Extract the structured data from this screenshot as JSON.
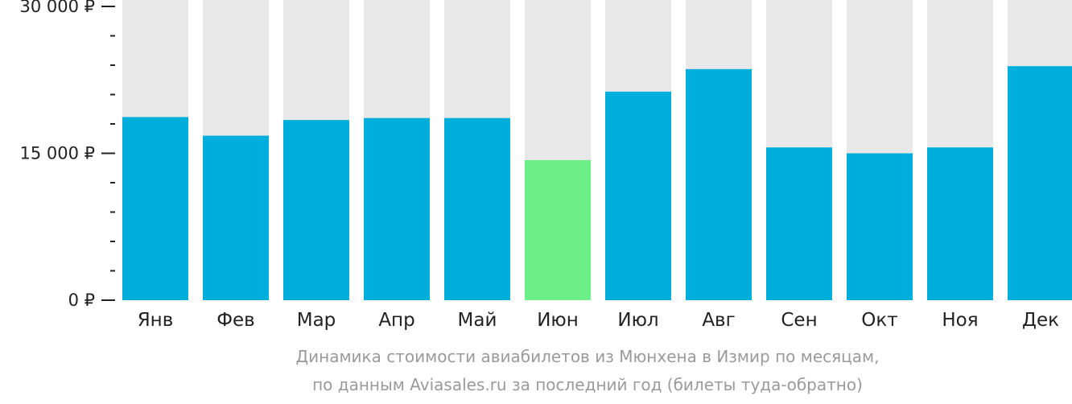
{
  "chart_data": {
    "type": "bar",
    "categories": [
      "Янв",
      "Фев",
      "Мар",
      "Апр",
      "Май",
      "Июн",
      "Июл",
      "Авг",
      "Сен",
      "Окт",
      "Ноя",
      "Дек"
    ],
    "values": [
      18700,
      16800,
      18400,
      18600,
      18600,
      14300,
      21300,
      23600,
      15600,
      15000,
      15600,
      23900
    ],
    "ylim": [
      0,
      30000
    ],
    "yticks": [
      {
        "value": 0,
        "label": "0 ₽"
      },
      {
        "value": 15000,
        "label": "15 000 ₽"
      },
      {
        "value": 30000,
        "label": "30 000 ₽"
      }
    ],
    "minor_step": 3000,
    "highlight_index": 5,
    "grid": false,
    "colors": {
      "bar": "#00aedb",
      "highlight": "#6def87",
      "track": "#e8e8e8",
      "axis": "#222222"
    }
  },
  "caption": {
    "line1": "Динамика стоимости авиабилетов из Мюнхена в Измир по месяцам,",
    "line2": "по данным Aviasales.ru за последний год (билеты туда-обратно)"
  }
}
